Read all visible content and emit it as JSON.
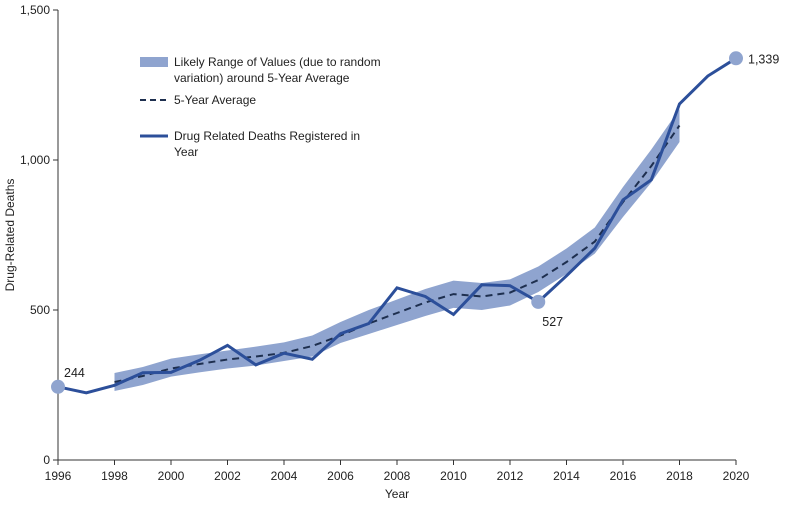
{
  "chart_data": {
    "type": "line",
    "title": "",
    "xlabel": "Year",
    "ylabel": "Drug-Related Deaths",
    "xlim": [
      1996,
      2020
    ],
    "ylim": [
      0,
      1500
    ],
    "x_ticks": [
      1996,
      1998,
      2000,
      2002,
      2004,
      2006,
      2008,
      2010,
      2012,
      2014,
      2016,
      2018,
      2020
    ],
    "y_ticks": [
      0,
      500,
      1000,
      1500
    ],
    "y_tick_labels": [
      "0",
      "500",
      "1,000",
      "1,500"
    ],
    "grid": false,
    "legend_position": "top-left",
    "colors": {
      "band": "#8fa4cf",
      "average": "#1e2f4f",
      "deaths": "#2c4f9a",
      "marker": "#8fa4cf",
      "axis": "#333333"
    },
    "series": [
      {
        "name": "Drug Related Deaths Registered in Year",
        "kind": "line",
        "x": [
          1996,
          1997,
          1998,
          1999,
          2000,
          2001,
          2002,
          2003,
          2004,
          2005,
          2006,
          2007,
          2008,
          2009,
          2010,
          2011,
          2012,
          2013,
          2014,
          2015,
          2016,
          2017,
          2018,
          2019,
          2020
        ],
        "y": [
          244,
          224,
          249,
          291,
          292,
          332,
          382,
          317,
          356,
          336,
          421,
          455,
          574,
          545,
          485,
          584,
          581,
          527,
          614,
          706,
          867,
          934,
          1187,
          1280,
          1339
        ]
      },
      {
        "name": "5-Year Average",
        "kind": "dashed",
        "x": [
          1998,
          1999,
          2000,
          2001,
          2002,
          2003,
          2004,
          2005,
          2006,
          2007,
          2008,
          2009,
          2010,
          2011,
          2012,
          2013,
          2014,
          2015,
          2016,
          2017,
          2018
        ],
        "y": [
          260,
          280,
          305,
          320,
          335,
          345,
          357,
          380,
          415,
          455,
          490,
          525,
          553,
          545,
          558,
          600,
          660,
          728,
          860,
          980,
          1115
        ]
      },
      {
        "name": "Likely Range of Values (due to random variation) around 5-Year Average",
        "kind": "band",
        "x": [
          1998,
          1999,
          2000,
          2001,
          2002,
          2003,
          2004,
          2005,
          2006,
          2007,
          2008,
          2009,
          2010,
          2011,
          2012,
          2013,
          2014,
          2015,
          2016,
          2017,
          2018
        ],
        "lower": [
          230,
          250,
          278,
          292,
          305,
          315,
          330,
          345,
          390,
          420,
          450,
          480,
          507,
          500,
          515,
          560,
          620,
          688,
          810,
          925,
          1060
        ],
        "upper": [
          290,
          310,
          338,
          352,
          365,
          378,
          392,
          415,
          460,
          500,
          535,
          570,
          598,
          590,
          602,
          645,
          705,
          775,
          910,
          1035,
          1170
        ]
      }
    ],
    "legend": [
      {
        "kind": "band",
        "lines": [
          "Likely Range of Values (due to random",
          "variation) around 5-Year Average"
        ]
      },
      {
        "kind": "dashed",
        "lines": [
          "5-Year Average"
        ]
      },
      {
        "kind": "line",
        "lines": [
          "Drug Related Deaths Registered in",
          "Year"
        ]
      }
    ],
    "annotations": [
      {
        "x": 1996,
        "y": 244,
        "label": "244",
        "anchor": "above-right"
      },
      {
        "x": 2013,
        "y": 527,
        "label": "527",
        "anchor": "below-right"
      },
      {
        "x": 2020,
        "y": 1339,
        "label": "1,339",
        "anchor": "right"
      }
    ]
  }
}
